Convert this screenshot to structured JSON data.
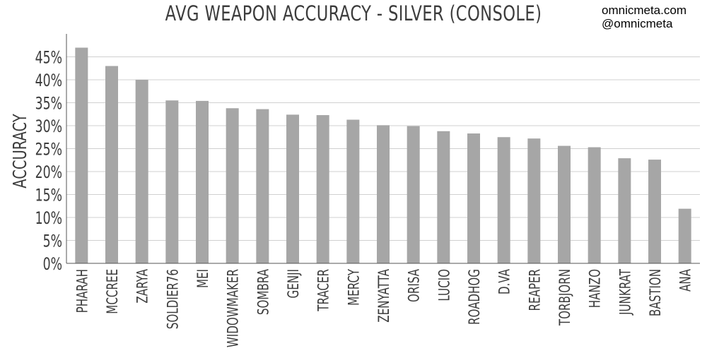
{
  "colors": {
    "bar": "#a6a6a6",
    "grid": "#d0d0d0",
    "axis": "#555555",
    "text": "#3c3c3c"
  },
  "credits": {
    "site": "omnicmeta.com",
    "handle": "@omnicmeta"
  },
  "chart_data": {
    "type": "bar",
    "title": "AVG WEAPON ACCURACY - SILVER (CONSOLE)",
    "xlabel": "",
    "ylabel": "ACCURACY",
    "ylim": [
      0,
      50
    ],
    "yticks": [
      0,
      5,
      10,
      15,
      20,
      25,
      30,
      35,
      40,
      45
    ],
    "ytick_labels": [
      "0%",
      "5%",
      "10%",
      "15%",
      "20%",
      "25%",
      "30%",
      "35%",
      "40%",
      "45%"
    ],
    "grid": true,
    "legend": "none",
    "categories": [
      "PHARAH",
      "MCCREE",
      "ZARYA",
      "SOLDIER76",
      "MEI",
      "WIDOWMAKER",
      "SOMBRA",
      "GENJI",
      "TRACER",
      "MERCY",
      "ZENYATTA",
      "ORISA",
      "LUCIO",
      "ROADHOG",
      "D.VA",
      "REAPER",
      "TORBJORN",
      "HANZO",
      "JUNKRAT",
      "BASTION",
      "ANA"
    ],
    "values": [
      47.0,
      43.0,
      40.0,
      35.5,
      35.4,
      33.8,
      33.6,
      32.4,
      32.3,
      31.3,
      30.1,
      29.9,
      28.8,
      28.3,
      27.5,
      27.2,
      25.6,
      25.3,
      22.9,
      22.6,
      11.9
    ]
  }
}
